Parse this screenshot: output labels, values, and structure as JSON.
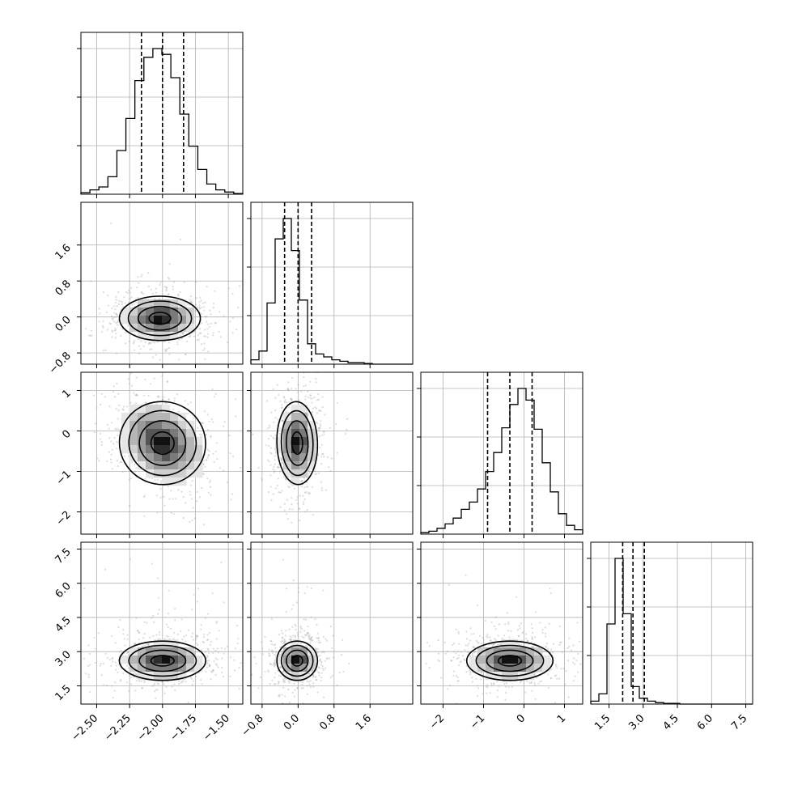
{
  "chart_data": {
    "type": "corner",
    "grid": true,
    "variables": [
      {
        "range": [
          -2.62,
          -1.39
        ],
        "ticks": [
          -2.5,
          -2.25,
          -2.0,
          -1.75,
          -1.5
        ],
        "tick_labels": [
          "−2.50",
          "−2.25",
          "−2.00",
          "−1.75",
          "−1.50"
        ],
        "quantiles": [
          -2.16,
          -2.0,
          -1.84
        ],
        "histogram": [
          0.01,
          0.03,
          0.05,
          0.12,
          0.3,
          0.52,
          0.78,
          0.94,
          1.0,
          0.96,
          0.8,
          0.55,
          0.33,
          0.17,
          0.07,
          0.03,
          0.015,
          0.005
        ]
      },
      {
        "range": [
          -1.05,
          2.55
        ],
        "ticks": [
          -0.8,
          0.0,
          0.8,
          1.6
        ],
        "tick_labels": [
          "−0.8",
          "0.0",
          "0.8",
          "1.6"
        ],
        "quantiles": [
          -0.3,
          0.0,
          0.3
        ],
        "histogram": [
          0.03,
          0.09,
          0.42,
          0.86,
          1.0,
          0.78,
          0.44,
          0.14,
          0.07,
          0.05,
          0.03,
          0.02,
          0.01,
          0.01,
          0.005,
          0.0,
          0.0,
          0.0,
          0.0,
          0.0
        ]
      },
      {
        "range": [
          -2.55,
          1.45
        ],
        "ticks": [
          -2,
          -1,
          0,
          1
        ],
        "tick_labels": [
          "−2",
          "−1",
          "0",
          "1"
        ],
        "quantiles": [
          -0.9,
          -0.35,
          0.2
        ],
        "histogram": [
          0.01,
          0.02,
          0.04,
          0.07,
          0.11,
          0.17,
          0.22,
          0.31,
          0.43,
          0.56,
          0.73,
          0.89,
          1.0,
          0.92,
          0.72,
          0.49,
          0.29,
          0.14,
          0.06,
          0.03
        ]
      },
      {
        "range": [
          0.7,
          7.8
        ],
        "ticks": [
          1.5,
          3.0,
          4.5,
          6.0,
          7.5
        ],
        "tick_labels": [
          "1.5",
          "3.0",
          "4.5",
          "6.0",
          "7.5"
        ],
        "quantiles": [
          2.1,
          2.55,
          3.05
        ],
        "histogram": [
          0.02,
          0.07,
          0.55,
          1.0,
          0.62,
          0.12,
          0.04,
          0.02,
          0.01,
          0.005,
          0.005,
          0.0,
          0.0,
          0.0,
          0.0,
          0.0,
          0.0,
          0.0,
          0.0,
          0.0
        ]
      }
    ],
    "pairs": [
      {
        "x": 0,
        "y": 1,
        "center": [
          -2.02,
          -0.03
        ],
        "sd": [
          0.15,
          0.24
        ],
        "rho": 0.0
      },
      {
        "x": 0,
        "y": 2,
        "center": [
          -2.0,
          -0.3
        ],
        "sd": [
          0.16,
          0.5
        ],
        "rho": -0.3
      },
      {
        "x": 1,
        "y": 2,
        "center": [
          -0.02,
          -0.3
        ],
        "sd": [
          0.22,
          0.5
        ],
        "rho": 0.05
      },
      {
        "x": 0,
        "y": 3,
        "center": [
          -2.0,
          2.6
        ],
        "sd": [
          0.16,
          0.42
        ],
        "rho": 0.0
      },
      {
        "x": 1,
        "y": 3,
        "center": [
          -0.02,
          2.6
        ],
        "sd": [
          0.22,
          0.42
        ],
        "rho": 0.0
      },
      {
        "x": 2,
        "y": 3,
        "center": [
          -0.35,
          2.6
        ],
        "sd": [
          0.52,
          0.42
        ],
        "rho": 0.0
      }
    ]
  }
}
